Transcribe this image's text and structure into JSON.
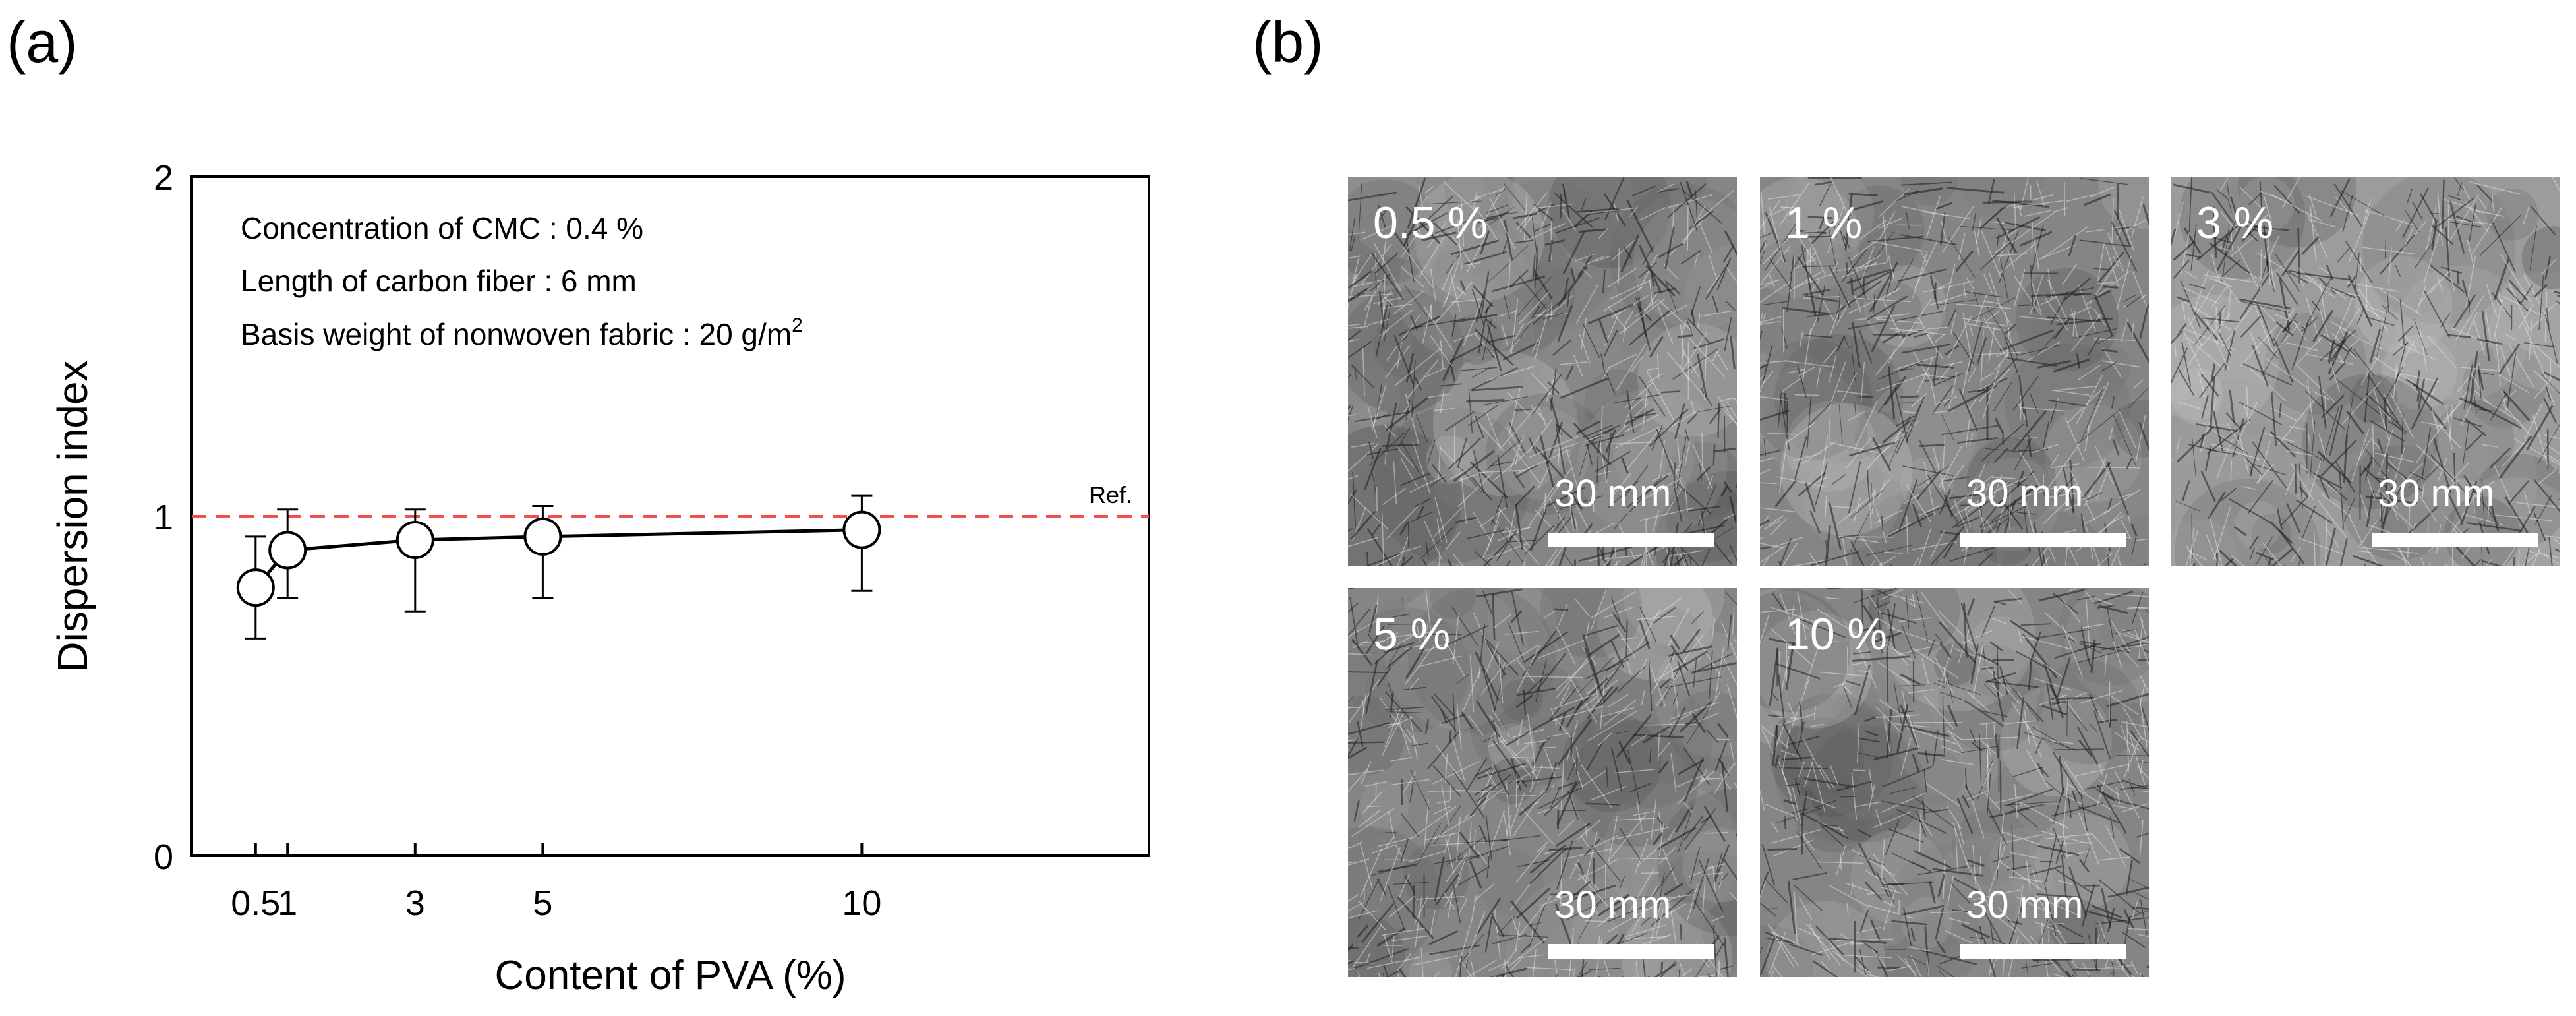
{
  "panel_a_label": "(a)",
  "panel_b_label": "(b)",
  "chart_data": {
    "type": "line",
    "xlabel": "Content of PVA (%)",
    "ylabel": "Dispersion index",
    "xlim": [
      -0.5,
      14.5
    ],
    "ylim": [
      0,
      2
    ],
    "x_ticks": [
      0.5,
      1,
      3,
      5,
      10
    ],
    "x_tick_labels": [
      "0.5",
      "1",
      "3",
      "5",
      "10"
    ],
    "y_ticks": [
      0,
      1,
      2
    ],
    "y_tick_labels": [
      "0",
      "1",
      "2"
    ],
    "series": [
      {
        "x": [
          0.5,
          1,
          3,
          5,
          10
        ],
        "y": [
          0.79,
          0.9,
          0.93,
          0.94,
          0.96
        ],
        "err_low": [
          0.64,
          0.76,
          0.72,
          0.76,
          0.78
        ],
        "err_high": [
          0.94,
          1.02,
          1.02,
          1.03,
          1.06
        ],
        "color": "#000000",
        "marker": "open-circle"
      }
    ],
    "reference_line": {
      "y": 1,
      "label": "Ref.",
      "color": "#f0504e",
      "style": "dashed"
    },
    "annotations": [
      "Concentration of CMC : 0.4 %",
      "Length of carbon fiber : 6 mm",
      "Basis weight of nonwoven fabric : 20 g/m"
    ],
    "annotation_superscript": "2",
    "grid": false,
    "legend": "none"
  },
  "images": [
    {
      "label": "0.5 %",
      "scale_label": "30 mm"
    },
    {
      "label": "1 %",
      "scale_label": "30 mm"
    },
    {
      "label": "3 %",
      "scale_label": "30 mm"
    },
    {
      "label": "5 %",
      "scale_label": "30 mm"
    },
    {
      "label": "10 %",
      "scale_label": "30 mm"
    }
  ]
}
